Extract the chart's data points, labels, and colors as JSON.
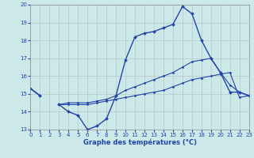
{
  "title": "Graphe des températures (°C)",
  "bg_color": "#cce8e8",
  "line_color": "#2244aa",
  "hours": [
    0,
    1,
    2,
    3,
    4,
    5,
    6,
    7,
    8,
    9,
    10,
    11,
    12,
    13,
    14,
    15,
    16,
    17,
    18,
    19,
    20,
    21,
    22,
    23
  ],
  "line_main": [
    15.3,
    14.9,
    null,
    14.4,
    14.0,
    13.8,
    13.0,
    13.2,
    13.6,
    14.9,
    16.9,
    18.2,
    18.4,
    18.5,
    18.7,
    18.9,
    19.9,
    19.5,
    18.0,
    17.0,
    16.2,
    15.1,
    15.1,
    14.9
  ],
  "line_mid": [
    15.3,
    14.9,
    null,
    14.4,
    14.5,
    14.5,
    14.5,
    14.6,
    14.7,
    14.9,
    15.2,
    15.4,
    15.6,
    15.8,
    16.0,
    16.2,
    16.5,
    16.8,
    16.9,
    17.0,
    16.2,
    15.5,
    15.1,
    14.9
  ],
  "line_low": [
    15.3,
    14.9,
    null,
    14.4,
    14.4,
    14.4,
    14.4,
    14.5,
    14.6,
    14.7,
    14.8,
    14.9,
    15.0,
    15.1,
    15.2,
    15.4,
    15.6,
    15.8,
    15.9,
    16.0,
    16.1,
    16.2,
    14.8,
    14.9
  ],
  "ylim": [
    13,
    20
  ],
  "yticks": [
    13,
    14,
    15,
    16,
    17,
    18,
    19,
    20
  ],
  "xlim": [
    0,
    23
  ],
  "xticks": [
    0,
    1,
    2,
    3,
    4,
    5,
    6,
    7,
    8,
    9,
    10,
    11,
    12,
    13,
    14,
    15,
    16,
    17,
    18,
    19,
    20,
    21,
    22,
    23
  ]
}
